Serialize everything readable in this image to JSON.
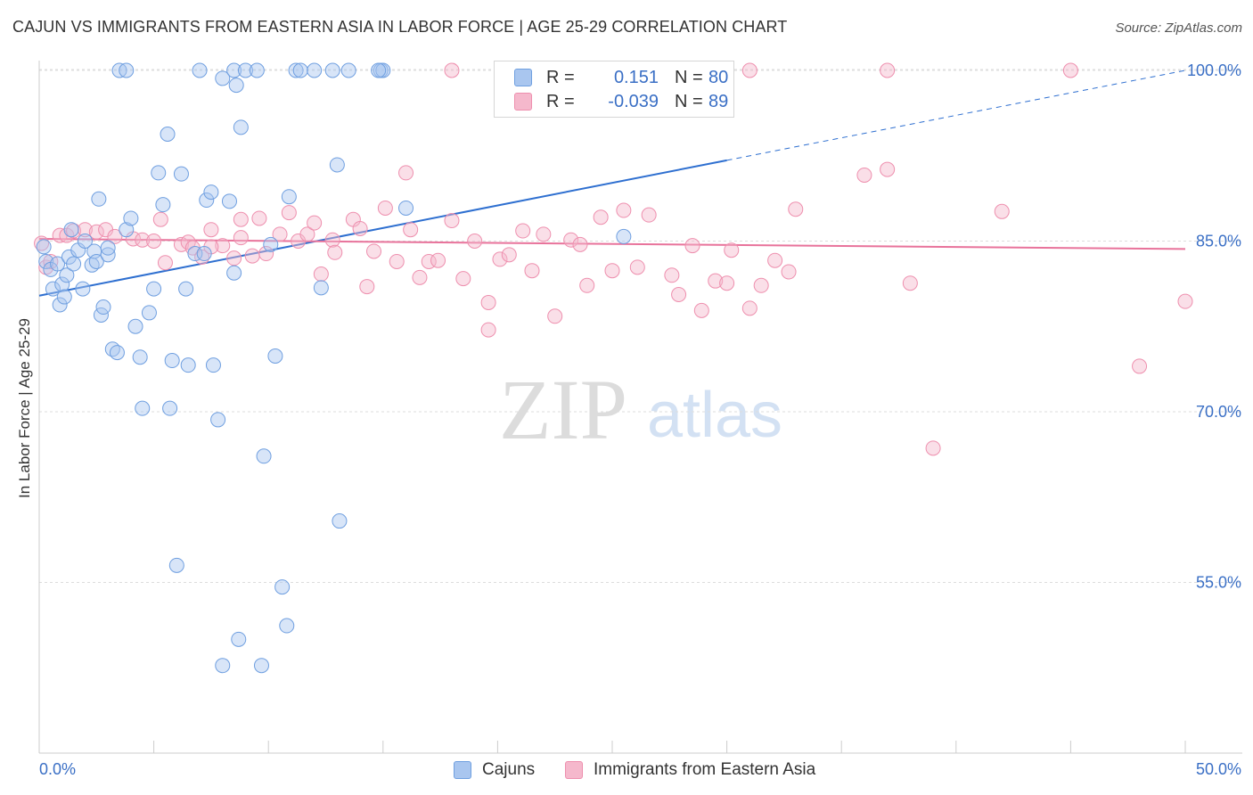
{
  "title": "CAJUN VS IMMIGRANTS FROM EASTERN ASIA IN LABOR FORCE | AGE 25-29 CORRELATION CHART",
  "source": "Source: ZipAtlas.com",
  "watermark": {
    "zip": "ZIP",
    "atlas": "atlas"
  },
  "legend_stats": [
    {
      "r_label": "R =",
      "r_value": "0.151",
      "n_label": "N =",
      "n_value": "80",
      "color": "#a9c6ef"
    },
    {
      "r_label": "R =",
      "r_value": "-0.039",
      "n_label": "N =",
      "n_value": "89",
      "color": "#f5b8cc"
    }
  ],
  "chart_data": {
    "type": "scatter",
    "title": "CAJUN VS IMMIGRANTS FROM EASTERN ASIA IN LABOR FORCE | AGE 25-29 CORRELATION CHART",
    "xlabel": "",
    "ylabel": "In Labor Force | Age 25-29",
    "xlim": [
      0,
      50
    ],
    "ylim": [
      40,
      101
    ],
    "x_tick_labels": [
      "0.0%",
      "50.0%"
    ],
    "y_ticks": [
      55,
      70,
      85,
      100
    ],
    "y_tick_labels": [
      "55.0%",
      "70.0%",
      "85.0%",
      "100.0%"
    ],
    "grid": true,
    "legend_position": "bottom",
    "series": [
      {
        "name": "Cajuns",
        "color": "#6f9fe0",
        "fill": "#a9c6ef",
        "trend": {
          "x0": 0,
          "y0": 80.2,
          "x1": 30,
          "y1": 92.1,
          "dashed_to_x": 50,
          "dashed_to_y": 100.0,
          "color": "#2e6fd0"
        },
        "points": [
          [
            0.2,
            84.5
          ],
          [
            0.3,
            83.2
          ],
          [
            0.5,
            82.5
          ],
          [
            0.6,
            80.8
          ],
          [
            0.8,
            83.0
          ],
          [
            0.9,
            79.4
          ],
          [
            1.0,
            81.2
          ],
          [
            1.1,
            80.1
          ],
          [
            1.2,
            82.0
          ],
          [
            1.3,
            83.6
          ],
          [
            1.4,
            86.0
          ],
          [
            1.5,
            83.0
          ],
          [
            1.7,
            84.2
          ],
          [
            1.9,
            80.8
          ],
          [
            2.0,
            85.0
          ],
          [
            2.3,
            82.9
          ],
          [
            2.4,
            84.1
          ],
          [
            2.5,
            83.2
          ],
          [
            2.6,
            88.7
          ],
          [
            2.7,
            78.5
          ],
          [
            2.8,
            79.2
          ],
          [
            3.0,
            83.8
          ],
          [
            3.0,
            84.4
          ],
          [
            3.2,
            75.5
          ],
          [
            3.4,
            75.2
          ],
          [
            3.5,
            100.0
          ],
          [
            3.8,
            100.0
          ],
          [
            3.8,
            86.0
          ],
          [
            4.0,
            87.0
          ],
          [
            4.2,
            77.5
          ],
          [
            4.4,
            74.8
          ],
          [
            4.5,
            70.3
          ],
          [
            4.8,
            78.7
          ],
          [
            5.0,
            80.8
          ],
          [
            5.2,
            91.0
          ],
          [
            5.4,
            88.2
          ],
          [
            5.6,
            94.4
          ],
          [
            5.7,
            70.3
          ],
          [
            5.8,
            74.5
          ],
          [
            6.0,
            56.5
          ],
          [
            6.2,
            90.9
          ],
          [
            6.4,
            80.8
          ],
          [
            6.5,
            74.1
          ],
          [
            6.8,
            83.9
          ],
          [
            7.0,
            100.0
          ],
          [
            7.2,
            83.9
          ],
          [
            7.3,
            88.6
          ],
          [
            7.5,
            89.3
          ],
          [
            7.6,
            74.1
          ],
          [
            7.8,
            69.3
          ],
          [
            8.0,
            99.3
          ],
          [
            8.3,
            88.5
          ],
          [
            8.5,
            82.2
          ],
          [
            8.6,
            98.7
          ],
          [
            8.8,
            95.0
          ],
          [
            8.7,
            50.0
          ],
          [
            8.0,
            47.7
          ],
          [
            8.5,
            100.0
          ],
          [
            9.0,
            100.0
          ],
          [
            9.5,
            100.0
          ],
          [
            9.7,
            47.7
          ],
          [
            9.8,
            66.1
          ],
          [
            10.1,
            84.7
          ],
          [
            10.3,
            74.9
          ],
          [
            10.6,
            54.6
          ],
          [
            10.8,
            51.2
          ],
          [
            10.9,
            88.9
          ],
          [
            11.2,
            100.0
          ],
          [
            11.4,
            100.0
          ],
          [
            12.0,
            100.0
          ],
          [
            12.3,
            80.9
          ],
          [
            12.8,
            100.0
          ],
          [
            13.0,
            91.7
          ],
          [
            13.1,
            60.4
          ],
          [
            13.5,
            100.0
          ],
          [
            14.9,
            100.0
          ],
          [
            15.0,
            100.0
          ],
          [
            16.0,
            87.9
          ],
          [
            25.5,
            85.4
          ],
          [
            14.8,
            100.0
          ]
        ]
      },
      {
        "name": "Immigrants from Eastern Asia",
        "color": "#ee8fae",
        "fill": "#f5b8cc",
        "trend": {
          "x0": 0,
          "y0": 85.2,
          "x1": 50,
          "y1": 84.3,
          "color": "#e8739b"
        },
        "points": [
          [
            0.1,
            84.8
          ],
          [
            0.3,
            82.7
          ],
          [
            0.5,
            83.2
          ],
          [
            0.9,
            85.5
          ],
          [
            1.2,
            85.5
          ],
          [
            1.5,
            85.9
          ],
          [
            2.0,
            86.0
          ],
          [
            2.5,
            85.8
          ],
          [
            2.9,
            86.0
          ],
          [
            3.3,
            85.4
          ],
          [
            4.1,
            85.2
          ],
          [
            4.5,
            85.1
          ],
          [
            5.0,
            85.0
          ],
          [
            5.3,
            86.9
          ],
          [
            5.5,
            83.1
          ],
          [
            6.2,
            84.7
          ],
          [
            6.5,
            84.9
          ],
          [
            6.7,
            84.4
          ],
          [
            7.1,
            83.6
          ],
          [
            7.5,
            86.0
          ],
          [
            8.0,
            84.6
          ],
          [
            8.5,
            83.5
          ],
          [
            8.8,
            86.9
          ],
          [
            9.3,
            83.7
          ],
          [
            9.6,
            87.0
          ],
          [
            9.9,
            83.9
          ],
          [
            10.5,
            85.6
          ],
          [
            10.9,
            87.5
          ],
          [
            11.3,
            85.0
          ],
          [
            11.7,
            85.6
          ],
          [
            12.0,
            86.6
          ],
          [
            12.3,
            82.1
          ],
          [
            12.8,
            85.1
          ],
          [
            12.9,
            84.0
          ],
          [
            13.7,
            86.9
          ],
          [
            14.0,
            86.1
          ],
          [
            14.3,
            81.0
          ],
          [
            14.6,
            84.1
          ],
          [
            15.1,
            87.9
          ],
          [
            15.6,
            83.2
          ],
          [
            16.0,
            91.0
          ],
          [
            16.2,
            86.0
          ],
          [
            16.6,
            81.8
          ],
          [
            17.0,
            83.2
          ],
          [
            17.4,
            83.3
          ],
          [
            18.0,
            86.8
          ],
          [
            18.5,
            81.7
          ],
          [
            19.0,
            85.0
          ],
          [
            19.6,
            79.6
          ],
          [
            20.1,
            83.4
          ],
          [
            20.5,
            83.8
          ],
          [
            21.1,
            85.9
          ],
          [
            21.5,
            82.4
          ],
          [
            22.0,
            85.6
          ],
          [
            22.5,
            78.4
          ],
          [
            23.2,
            85.1
          ],
          [
            23.6,
            84.7
          ],
          [
            23.9,
            81.1
          ],
          [
            24.5,
            87.1
          ],
          [
            25.0,
            82.4
          ],
          [
            25.5,
            87.7
          ],
          [
            26.1,
            82.7
          ],
          [
            26.6,
            87.3
          ],
          [
            27.6,
            82.0
          ],
          [
            27.9,
            80.3
          ],
          [
            28.5,
            84.6
          ],
          [
            28.9,
            78.9
          ],
          [
            29.5,
            81.5
          ],
          [
            30.0,
            81.3
          ],
          [
            30.2,
            84.2
          ],
          [
            31.0,
            79.1
          ],
          [
            31.5,
            81.1
          ],
          [
            32.1,
            83.3
          ],
          [
            32.7,
            82.3
          ],
          [
            33.0,
            87.8
          ],
          [
            36.0,
            90.8
          ],
          [
            37.0,
            91.3
          ],
          [
            38.0,
            81.3
          ],
          [
            39.0,
            66.8
          ],
          [
            42.0,
            87.6
          ],
          [
            45.0,
            100.0
          ],
          [
            48.0,
            74.0
          ],
          [
            50.0,
            79.7
          ],
          [
            37.0,
            100.0
          ],
          [
            31.0,
            100.0
          ],
          [
            18.0,
            100.0
          ],
          [
            19.6,
            77.2
          ],
          [
            7.5,
            84.5
          ],
          [
            8.8,
            85.3
          ]
        ]
      }
    ]
  }
}
